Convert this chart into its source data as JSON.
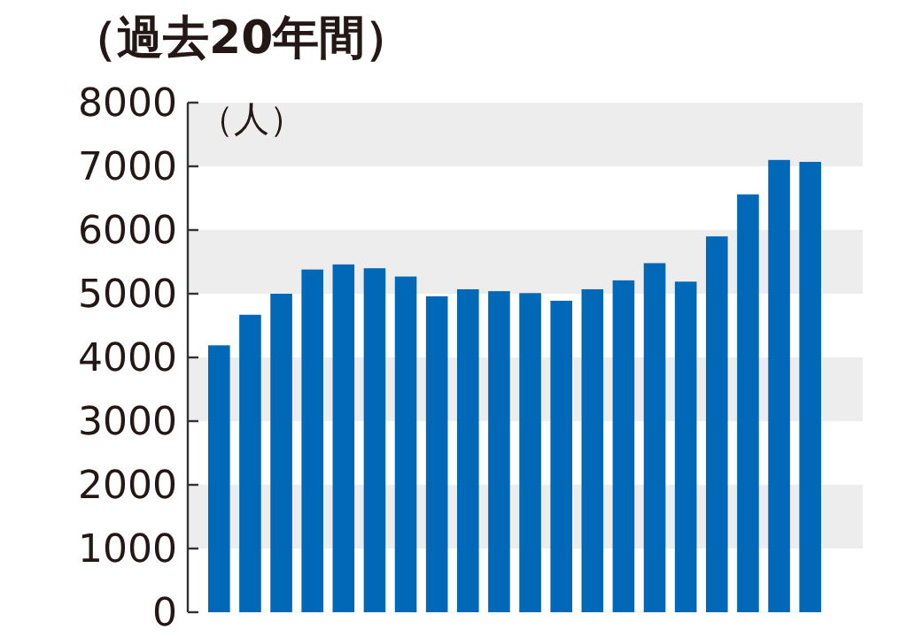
{
  "chart_data": {
    "type": "bar",
    "title": "（過去20年間）",
    "ylabel": "（人）",
    "categories": [
      null,
      null,
      null,
      null,
      null,
      null,
      null,
      null,
      null,
      null,
      null,
      null,
      null,
      null,
      null,
      null,
      null,
      null,
      null,
      null
    ],
    "values": [
      4190,
      4670,
      5000,
      5380,
      5460,
      5400,
      5270,
      4960,
      5070,
      5040,
      5010,
      4890,
      5070,
      5210,
      5480,
      5190,
      5900,
      6560,
      7100,
      7070
    ],
    "color": "#0068b7",
    "ylim": [
      0,
      8000
    ],
    "yticks": [
      0,
      1000,
      2000,
      3000,
      4000,
      5000,
      6000,
      7000,
      8000
    ],
    "bands": [
      {
        "axis": "y",
        "from": 7000,
        "to": 8000,
        "color": "#ededed"
      },
      {
        "axis": "y",
        "from": 5000,
        "to": 6000,
        "color": "#ededed"
      },
      {
        "axis": "y",
        "from": 3000,
        "to": 4000,
        "color": "#ededed"
      },
      {
        "axis": "y",
        "from": 1000,
        "to": 2000,
        "color": "#ededed"
      }
    ],
    "grid": false
  }
}
